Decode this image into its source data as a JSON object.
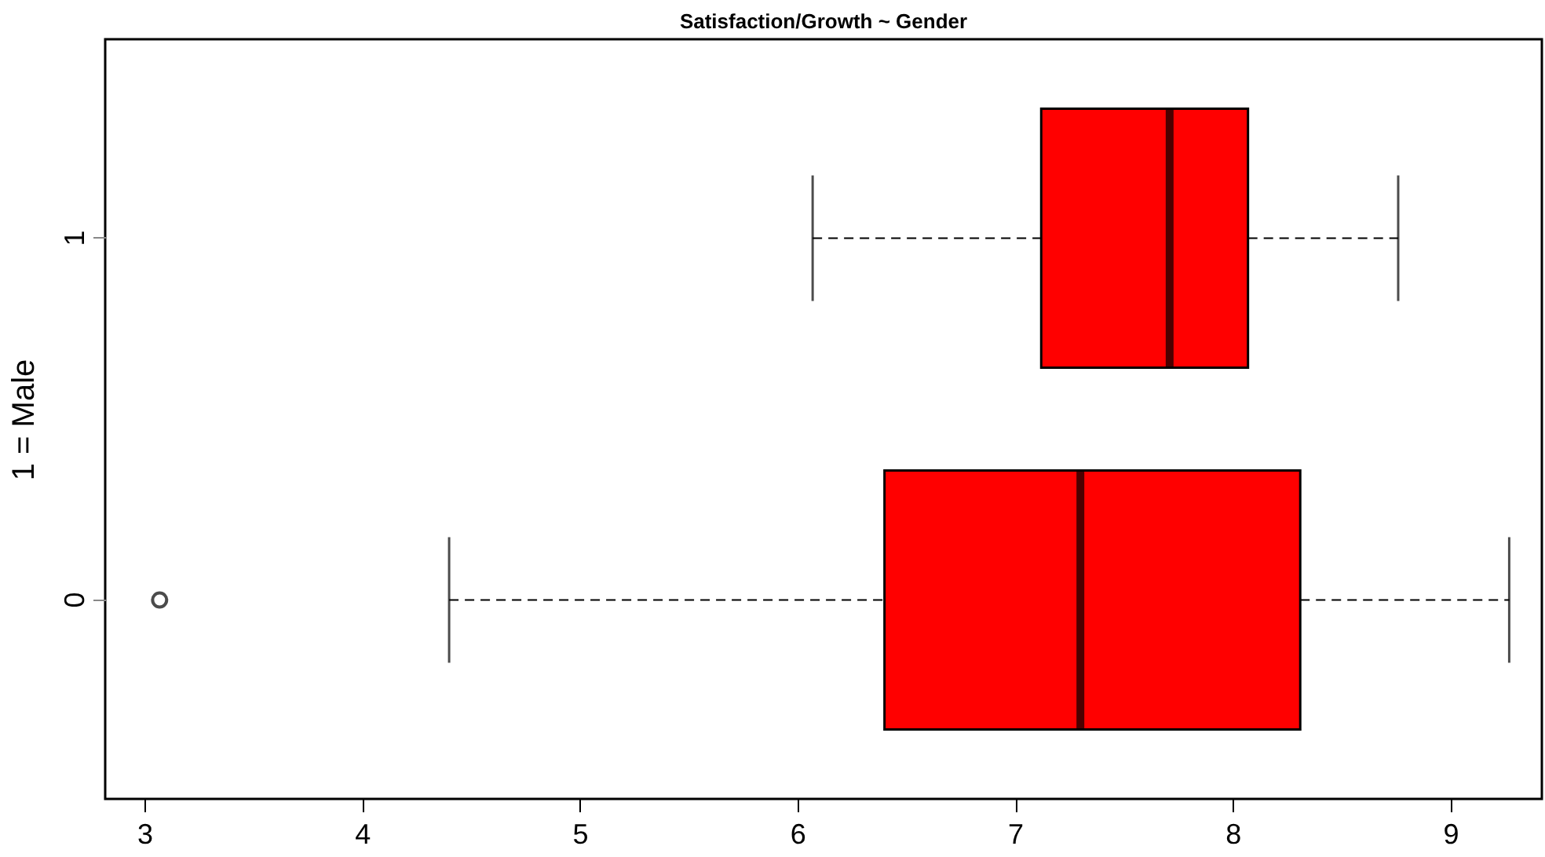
{
  "chart_data": {
    "type": "box",
    "orientation": "horizontal",
    "title": "Satisfaction/Growth ~ Gender",
    "ylabel": "1 = Male",
    "categories": [
      "1",
      "0"
    ],
    "color": "#ff0000",
    "boxes": [
      {
        "low": 6.07,
        "q1": 7.12,
        "median": 7.71,
        "q3": 8.07,
        "high": 8.76
      },
      {
        "low": 4.4,
        "q1": 6.4,
        "median": 7.3,
        "q3": 8.31,
        "high": 9.27,
        "outliers": [
          3.07
        ]
      }
    ],
    "xlim": [
      2.82,
      9.42
    ],
    "xticks": [
      3,
      4,
      5,
      6,
      7,
      8,
      9
    ],
    "grid": false
  }
}
